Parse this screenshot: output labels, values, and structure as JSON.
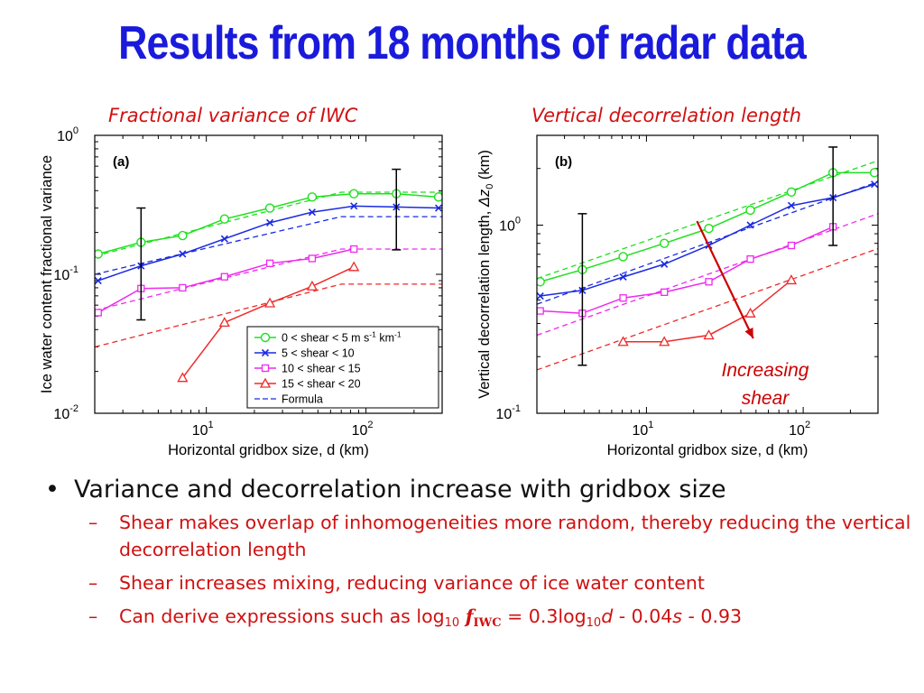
{
  "slide": {
    "title": "Results from 18 months of radar data",
    "panel_a_heading": "Fractional variance of IWC",
    "panel_b_heading": "Vertical decorrelation length"
  },
  "bullets": {
    "main": "Variance and decorrelation increase with gridbox size",
    "sub1": "Shear makes overlap of inhomogeneities more random, thereby reducing the vertical decorrelation length",
    "sub2": "Shear increases mixing, reducing variance of ice water content",
    "sub3": {
      "prefix": "Can derive expressions such as log",
      "sub10": "10",
      "f": "f",
      "iwc": "IWC",
      "mid": " = 0.3log",
      "sub10b": "10",
      "d": "d",
      "mid2": " - 0.04",
      "s": "s",
      "end": " - 0.93"
    }
  },
  "chart_data": [
    {
      "type": "line",
      "panel_label": "(a)",
      "xlabel": "Horizontal gridbox size, d (km)",
      "ylabel": "Ice water content fractional variance",
      "x_scale": "log",
      "y_scale": "log",
      "xlim": [
        2,
        300
      ],
      "ylim": [
        0.01,
        1
      ],
      "x_ticks": [
        {
          "value": 10,
          "base": "10",
          "exp": "1"
        },
        {
          "value": 100,
          "base": "10",
          "exp": "2"
        }
      ],
      "y_ticks": [
        {
          "value": 1,
          "base": "10",
          "exp": "0"
        },
        {
          "value": 0.1,
          "base": "10",
          "exp": "-1"
        },
        {
          "value": 0.01,
          "base": "10",
          "exp": "-2"
        }
      ],
      "legend_position": "bottom-right",
      "legend": [
        {
          "label": "0 < shear < 5 m s",
          "sup1": "-1",
          "mid": " km",
          "sup2": "-1",
          "color": "#1ee01e",
          "marker": "circle"
        },
        {
          "label": "5 < shear < 10",
          "color": "#1a2ae0",
          "marker": "x"
        },
        {
          "label": "10 < shear < 15",
          "color": "#ee2aee",
          "marker": "square"
        },
        {
          "label": "15 < shear < 20",
          "color": "#ee2a2a",
          "marker": "triangle"
        },
        {
          "label": "Formula",
          "color": "#1a2ae0",
          "marker": "dashed"
        }
      ],
      "series": [
        {
          "name": "0 < shear < 5 m s-1 km-1",
          "color": "#1ee01e",
          "marker": "circle",
          "x": [
            2.1,
            3.9,
            7.1,
            13,
            25,
            46,
            84,
            155,
            285
          ],
          "y": [
            0.14,
            0.17,
            0.19,
            0.25,
            0.3,
            0.36,
            0.38,
            0.38,
            0.36
          ]
        },
        {
          "name": "5 < shear < 10",
          "color": "#1a2ae0",
          "marker": "x",
          "x": [
            2.1,
            3.9,
            7.1,
            13,
            25,
            46,
            84,
            155,
            285
          ],
          "y": [
            0.09,
            0.115,
            0.14,
            0.18,
            0.235,
            0.28,
            0.31,
            0.305,
            0.3
          ]
        },
        {
          "name": "10 < shear < 15",
          "color": "#ee2aee",
          "marker": "square",
          "x": [
            2.1,
            3.9,
            7.1,
            13,
            25,
            46,
            84
          ],
          "y": [
            0.053,
            0.079,
            0.08,
            0.096,
            0.12,
            0.13,
            0.152
          ]
        },
        {
          "name": "15 < shear < 20",
          "color": "#ee2a2a",
          "marker": "triangle",
          "x": [
            7.1,
            13,
            25,
            46,
            84
          ],
          "y": [
            0.018,
            0.045,
            0.062,
            0.082,
            0.113
          ]
        }
      ],
      "formula_lines": [
        {
          "color": "#1ee01e",
          "x": [
            2,
            70,
            300
          ],
          "y": [
            0.135,
            0.39,
            0.39
          ]
        },
        {
          "color": "#1a2ae0",
          "x": [
            2,
            70,
            300
          ],
          "y": [
            0.1,
            0.26,
            0.26
          ]
        },
        {
          "color": "#ee2aee",
          "x": [
            2,
            70,
            300
          ],
          "y": [
            0.055,
            0.152,
            0.152
          ]
        },
        {
          "color": "#ee2a2a",
          "x": [
            2,
            70,
            300
          ],
          "y": [
            0.03,
            0.085,
            0.085
          ]
        }
      ],
      "error_bars": [
        {
          "x": 3.9,
          "low": 0.047,
          "high": 0.3
        },
        {
          "x": 155,
          "low": 0.15,
          "high": 0.57
        }
      ]
    },
    {
      "type": "line",
      "panel_label": "(b)",
      "xlabel": "Horizontal gridbox size, d (km)",
      "ylabel_prefix": "Vertical decorrelation length, ",
      "ylabel_delta": "Δz",
      "ylabel_sub": "0",
      "ylabel_suffix": " (km)",
      "x_scale": "log",
      "y_scale": "log",
      "xlim": [
        2,
        300
      ],
      "ylim": [
        0.1,
        3
      ],
      "x_ticks": [
        {
          "value": 10,
          "base": "10",
          "exp": "1"
        },
        {
          "value": 100,
          "base": "10",
          "exp": "2"
        }
      ],
      "y_ticks": [
        {
          "value": 1,
          "base": "10",
          "exp": "0"
        },
        {
          "value": 0.1,
          "base": "10",
          "exp": "-1"
        }
      ],
      "series": [
        {
          "name": "0 < shear < 5 m s-1 km-1",
          "color": "#1ee01e",
          "marker": "circle",
          "x": [
            2.1,
            3.9,
            7.1,
            13,
            25,
            46,
            84,
            155,
            285
          ],
          "y": [
            0.5,
            0.58,
            0.68,
            0.8,
            0.96,
            1.2,
            1.5,
            1.9,
            1.9
          ]
        },
        {
          "name": "5 < shear < 10",
          "color": "#1a2ae0",
          "marker": "x",
          "x": [
            2.1,
            3.9,
            7.1,
            13,
            25,
            46,
            84,
            155,
            285
          ],
          "y": [
            0.42,
            0.45,
            0.53,
            0.62,
            0.78,
            1.0,
            1.27,
            1.4,
            1.65
          ]
        },
        {
          "name": "10 < shear < 15",
          "color": "#ee2aee",
          "marker": "square",
          "x": [
            2.1,
            3.9,
            7.1,
            13,
            25,
            46,
            84,
            155
          ],
          "y": [
            0.35,
            0.34,
            0.41,
            0.44,
            0.5,
            0.66,
            0.78,
            0.98
          ]
        },
        {
          "name": "15 < shear < 20",
          "color": "#ee2a2a",
          "marker": "triangle",
          "x": [
            7.1,
            13,
            25,
            46,
            84
          ],
          "y": [
            0.24,
            0.24,
            0.26,
            0.34,
            0.51
          ]
        }
      ],
      "formula_lines": [
        {
          "color": "#1ee01e",
          "x": [
            2,
            300
          ],
          "y": [
            0.52,
            2.2
          ]
        },
        {
          "color": "#1a2ae0",
          "x": [
            2,
            300
          ],
          "y": [
            0.38,
            1.7
          ]
        },
        {
          "color": "#ee2aee",
          "x": [
            2,
            300
          ],
          "y": [
            0.26,
            1.15
          ]
        },
        {
          "color": "#ee2a2a",
          "x": [
            2,
            300
          ],
          "y": [
            0.17,
            0.75
          ]
        }
      ],
      "error_bars": [
        {
          "x": 3.9,
          "low": 0.18,
          "high": 1.15
        },
        {
          "x": 155,
          "low": 0.78,
          "high": 2.6
        }
      ],
      "annotation": {
        "line1": "Increasing",
        "line2": "shear",
        "color": "#cc0000",
        "arrow_from": [
          21,
          1.05
        ],
        "arrow_to": [
          48,
          0.25
        ]
      }
    }
  ]
}
